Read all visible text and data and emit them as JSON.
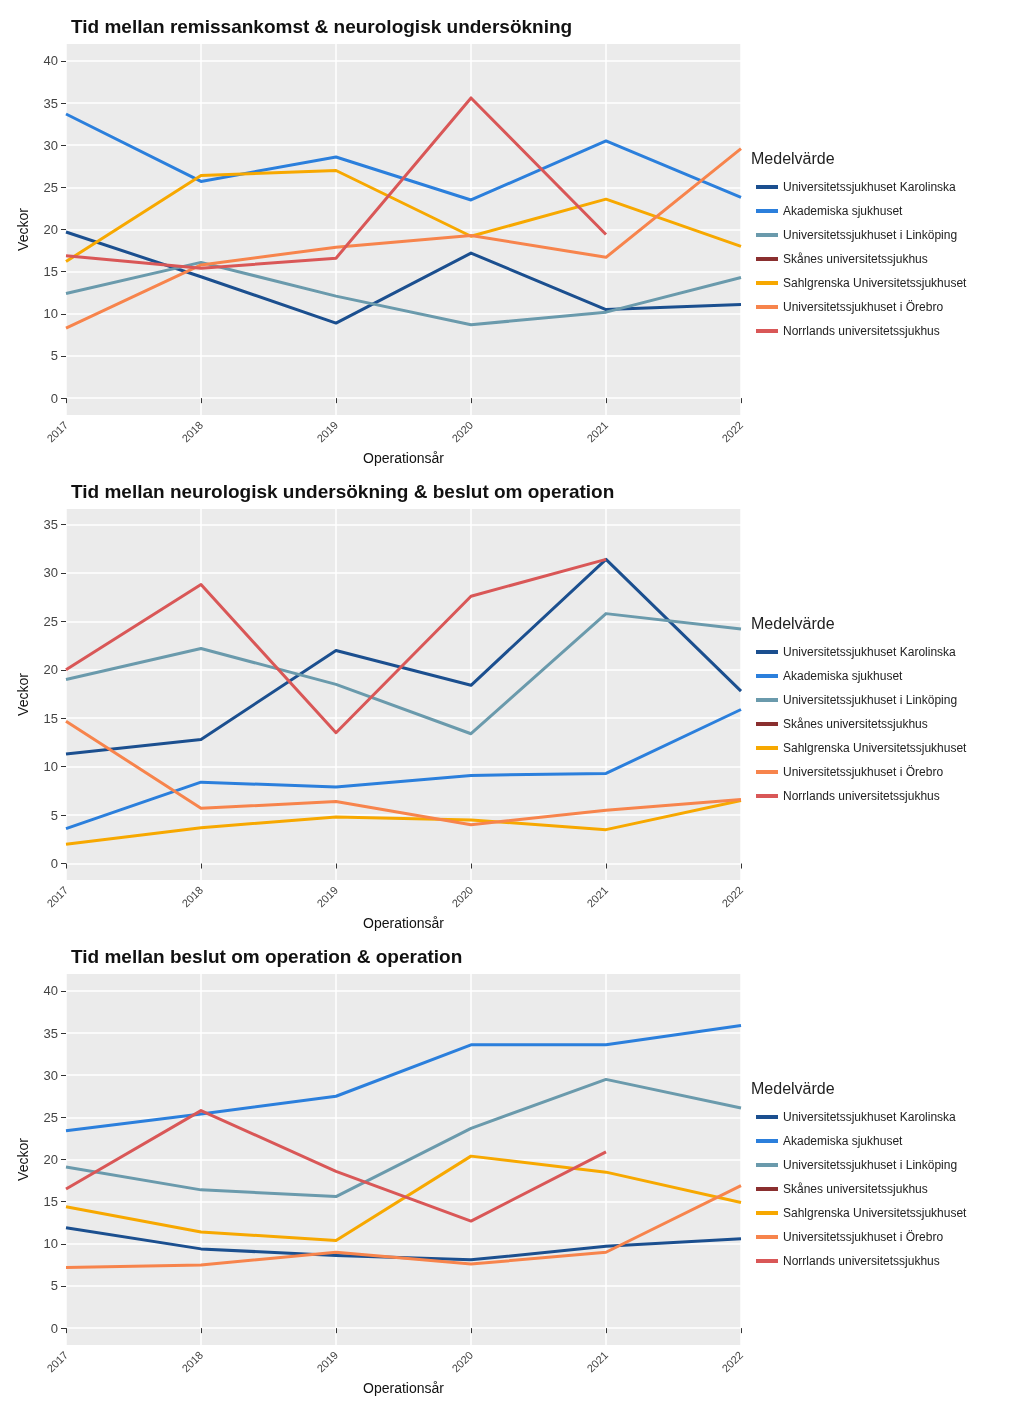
{
  "chart_data": [
    {
      "type": "line",
      "title": "Tid mellan remissankomst & neurologisk undersökning",
      "xlabel": "Operationsår",
      "ylabel": "Veckor",
      "legend_title": "Medelvärde",
      "legend": "right",
      "grid": true,
      "categories": [
        "2017",
        "2018",
        "2019",
        "2020",
        "2021",
        "2022"
      ],
      "ylim": [
        -2,
        42
      ],
      "yticks": [
        0,
        5,
        10,
        15,
        20,
        25,
        30,
        35,
        40
      ],
      "series": [
        {
          "name": "Universitetssjukhuset Karolinska",
          "color": "#1b4f8f",
          "values": [
            19.7,
            14.4,
            8.9,
            17.2,
            10.5,
            11.1
          ]
        },
        {
          "name": "Akademiska sjukhuset",
          "color": "#2b7fdc",
          "values": [
            33.7,
            25.7,
            28.6,
            23.5,
            30.5,
            23.8
          ]
        },
        {
          "name": "Universitetssjukhuset i Linköping",
          "color": "#6a9aac",
          "values": [
            12.4,
            16.1,
            12.1,
            8.7,
            10.2,
            14.3
          ]
        },
        {
          "name": "Skånes universitetssjukhus",
          "color": "#8a2f2f",
          "values": [
            null,
            null,
            null,
            null,
            null,
            null
          ]
        },
        {
          "name": "Sahlgrenska Universitetssjukhuset",
          "color": "#f7a800",
          "values": [
            16.2,
            26.4,
            27.0,
            19.2,
            23.6,
            18.0
          ]
        },
        {
          "name": "Universitetssjukhuset i Örebro",
          "color": "#f7844c",
          "values": [
            8.3,
            15.8,
            17.9,
            19.3,
            16.7,
            29.6
          ]
        },
        {
          "name": "Norrlands universitetssjukhus",
          "color": "#d95757",
          "values": [
            16.9,
            15.4,
            16.6,
            35.6,
            19.4,
            null
          ]
        }
      ]
    },
    {
      "type": "line",
      "title": "Tid mellan neurologisk undersökning & beslut om operation",
      "xlabel": "Operationsår",
      "ylabel": "Veckor",
      "legend_title": "Medelvärde",
      "legend": "right",
      "grid": true,
      "categories": [
        "2017",
        "2018",
        "2019",
        "2020",
        "2021",
        "2022"
      ],
      "ylim": [
        -1.7,
        36.6
      ],
      "yticks": [
        0,
        5,
        10,
        15,
        20,
        25,
        30,
        35
      ],
      "series": [
        {
          "name": "Universitetssjukhuset Karolinska",
          "color": "#1b4f8f",
          "values": [
            11.3,
            12.8,
            22.0,
            18.4,
            31.4,
            17.8
          ]
        },
        {
          "name": "Akademiska sjukhuset",
          "color": "#2b7fdc",
          "values": [
            3.6,
            8.4,
            7.9,
            9.1,
            9.3,
            15.9
          ]
        },
        {
          "name": "Universitetssjukhuset i Linköping",
          "color": "#6a9aac",
          "values": [
            19.0,
            22.2,
            18.5,
            13.4,
            25.8,
            24.2
          ]
        },
        {
          "name": "Skånes universitetssjukhus",
          "color": "#8a2f2f",
          "values": [
            null,
            null,
            null,
            null,
            null,
            null
          ]
        },
        {
          "name": "Sahlgrenska Universitetssjukhuset",
          "color": "#f7a800",
          "values": [
            2.0,
            3.7,
            4.8,
            4.5,
            3.5,
            6.5
          ]
        },
        {
          "name": "Universitetssjukhuset i Örebro",
          "color": "#f7844c",
          "values": [
            14.7,
            5.7,
            6.4,
            4.0,
            5.5,
            6.6
          ]
        },
        {
          "name": "Norrlands universitetssjukhus",
          "color": "#d95757",
          "values": [
            20.0,
            28.8,
            13.5,
            27.6,
            31.4,
            null
          ]
        }
      ]
    },
    {
      "type": "line",
      "title": "Tid mellan beslut om operation & operation",
      "xlabel": "Operationsår",
      "ylabel": "Veckor",
      "legend_title": "Medelvärde",
      "legend": "right",
      "grid": true,
      "categories": [
        "2017",
        "2018",
        "2019",
        "2020",
        "2021",
        "2022"
      ],
      "ylim": [
        -2,
        42
      ],
      "yticks": [
        0,
        5,
        10,
        15,
        20,
        25,
        30,
        35,
        40
      ],
      "series": [
        {
          "name": "Universitetssjukhuset Karolinska",
          "color": "#1b4f8f",
          "values": [
            11.9,
            9.4,
            8.6,
            8.1,
            9.7,
            10.6
          ]
        },
        {
          "name": "Akademiska sjukhuset",
          "color": "#2b7fdc",
          "values": [
            23.4,
            25.4,
            27.5,
            33.6,
            33.6,
            35.9
          ]
        },
        {
          "name": "Universitetssjukhuset i Linköping",
          "color": "#6a9aac",
          "values": [
            19.1,
            16.4,
            15.6,
            23.7,
            29.5,
            26.1
          ]
        },
        {
          "name": "Skånes universitetssjukhus",
          "color": "#8a2f2f",
          "values": [
            null,
            null,
            null,
            null,
            null,
            null
          ]
        },
        {
          "name": "Sahlgrenska Universitetssjukhuset",
          "color": "#f7a800",
          "values": [
            14.4,
            11.4,
            10.4,
            20.4,
            18.5,
            14.9
          ]
        },
        {
          "name": "Universitetssjukhuset i Örebro",
          "color": "#f7844c",
          "values": [
            7.2,
            7.5,
            9.0,
            7.6,
            9.0,
            16.9
          ]
        },
        {
          "name": "Norrlands universitetssjukhus",
          "color": "#d95757",
          "values": [
            16.5,
            25.8,
            18.6,
            12.7,
            20.9,
            null
          ]
        }
      ]
    }
  ]
}
